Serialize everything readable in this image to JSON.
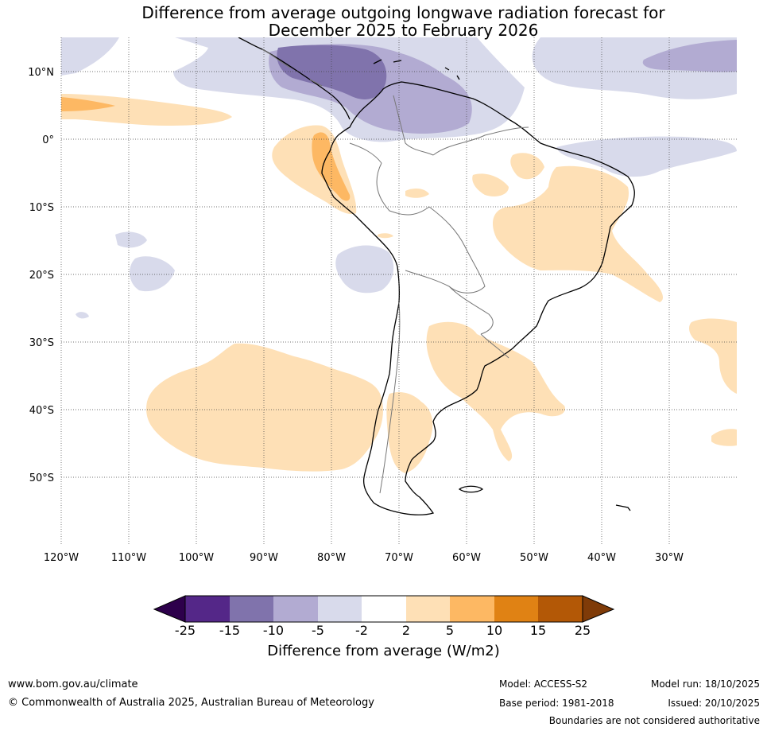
{
  "title_line1": "Difference from average outgoing longwave radiation forecast for",
  "title_line2": "December 2025 to February 2026",
  "lat_labels": [
    "10°N",
    "0°",
    "10°S",
    "20°S",
    "30°S",
    "40°S",
    "50°S"
  ],
  "lon_labels": [
    "120°W",
    "110°W",
    "100°W",
    "90°W",
    "80°W",
    "70°W",
    "60°W",
    "50°W",
    "40°W",
    "30°W"
  ],
  "colorbar": {
    "title": "Difference from average (W/m2)",
    "tick_labels": [
      "-25",
      "-15",
      "-10",
      "-5",
      "-2",
      "2",
      "5",
      "10",
      "15",
      "25"
    ],
    "colors": {
      "under": "#2d004b",
      "c1": "#542788",
      "c2": "#8073ac",
      "c3": "#b2abd2",
      "c4": "#d8daeb",
      "c5": "#ffffff",
      "c6": "#fee0b6",
      "c7": "#fdb863",
      "c8": "#e08214",
      "c9": "#b35806",
      "over": "#7f3b08"
    }
  },
  "footer": {
    "website": "www.bom.gov.au/climate",
    "copyright": "© Commonwealth of Australia 2025, Australian Bureau of Meteorology",
    "model": "Model: ACCESS-S2",
    "base_period": "Base period: 1981-2018",
    "model_run": "Model run: 18/10/2025",
    "issued": "Issued: 20/10/2025",
    "boundaries": "Boundaries are not considered authoritative"
  }
}
